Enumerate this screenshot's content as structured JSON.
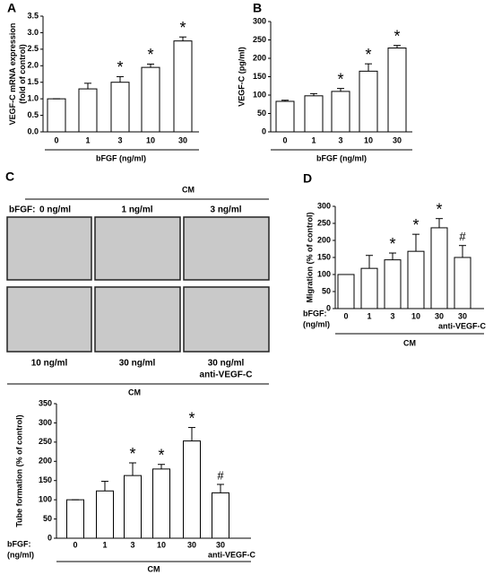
{
  "chart_data": [
    {
      "type": "bar",
      "panel": "A",
      "ylabel": [
        "VEGF-C mRNA expression",
        "(fold of control)"
      ],
      "xlabel": [
        "bFGF (ng/ml)"
      ],
      "categories": [
        "0",
        "1",
        "3",
        "10",
        "30"
      ],
      "values": [
        1.0,
        1.3,
        1.5,
        1.95,
        2.75
      ],
      "errors": [
        0,
        0.17,
        0.17,
        0.1,
        0.12
      ],
      "annotations": [
        null,
        null,
        "*",
        "*",
        "*"
      ],
      "ylim": [
        0,
        3.5
      ],
      "yticks": [
        {
          "value": 0,
          "label": "0.0"
        },
        0.5,
        {
          "value": 1,
          "label": "1.0"
        },
        1.5,
        {
          "value": 2,
          "label": "2.0"
        },
        2.5,
        {
          "value": 3,
          "label": "3.0"
        },
        3.5
      ],
      "color": "#ffffff"
    },
    {
      "type": "bar",
      "panel": "B",
      "ylabel": [
        "VEGF-C (pg/ml)"
      ],
      "xlabel": [
        "bFGF (ng/ml)"
      ],
      "categories": [
        "0",
        "1",
        "3",
        "10",
        "30"
      ],
      "values": [
        83,
        98,
        110,
        165,
        228
      ],
      "errors": [
        3,
        6,
        8,
        20,
        7
      ],
      "annotations": [
        null,
        null,
        "*",
        "*",
        "*"
      ],
      "ylim": [
        0,
        300
      ],
      "yticks": [
        0,
        50,
        100,
        150,
        200,
        250,
        300
      ],
      "color": "#ffffff"
    },
    {
      "type": "bar",
      "panel": "D",
      "ylabel": [
        "Migration (% of control)"
      ],
      "xlabel": [
        "bFGF:",
        "(ng/ml)"
      ],
      "note": "anti-VEGF-C",
      "group_label": "CM",
      "categories": [
        "0",
        "1",
        "3",
        "10",
        "30",
        "30"
      ],
      "values": [
        100,
        118,
        143,
        168,
        237,
        150
      ],
      "errors": [
        0,
        38,
        20,
        50,
        27,
        35
      ],
      "annotations": [
        null,
        null,
        "*",
        "*",
        "*",
        "#"
      ],
      "ylim": [
        0,
        300
      ],
      "yticks": [
        0,
        50,
        100,
        150,
        200,
        250,
        300
      ],
      "color": "#ffffff"
    },
    {
      "type": "bar",
      "ylabel": [
        "Tube formation (% of control)"
      ],
      "xlabel": [
        "bFGF:",
        "(ng/ml)"
      ],
      "note": "anti-VEGF-C",
      "group_label": "CM",
      "categories": [
        "0",
        "1",
        "3",
        "10",
        "30",
        "30"
      ],
      "values": [
        100,
        123,
        163,
        180,
        253,
        118
      ],
      "errors": [
        0,
        25,
        33,
        12,
        35,
        22
      ],
      "annotations": [
        null,
        null,
        "*",
        "*",
        "*",
        "#"
      ],
      "ylim": [
        0,
        350
      ],
      "yticks": [
        0,
        50,
        100,
        150,
        200,
        250,
        300,
        350
      ],
      "color": "#ffffff"
    }
  ],
  "image_panel": {
    "panel": "C",
    "top_label": "CM",
    "row_prefix": "bFGF:",
    "labels": [
      "0 ng/ml",
      "1 ng/ml",
      "3 ng/ml",
      "10 ng/ml",
      "30 ng/ml",
      "30 ng/ml"
    ],
    "note": "anti-VEGF-C",
    "bottom_label": "CM"
  }
}
